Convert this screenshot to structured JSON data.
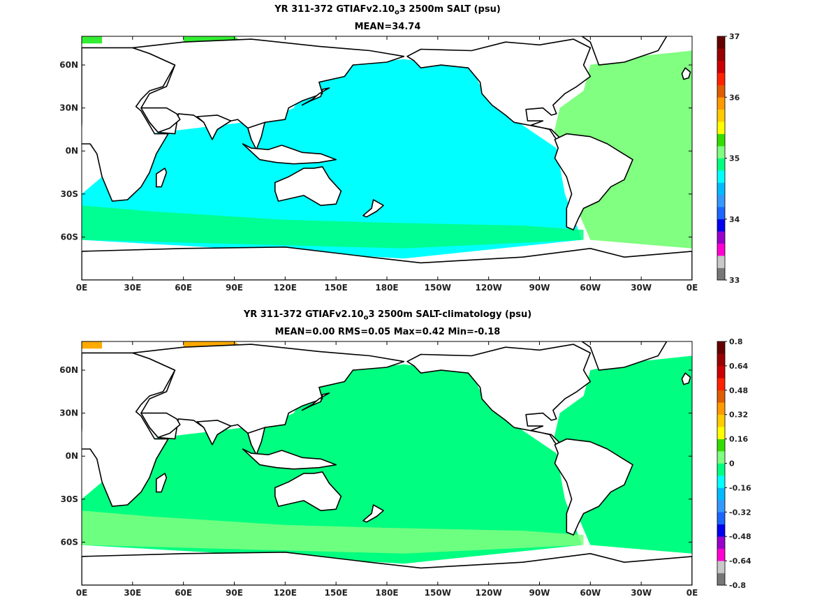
{
  "panels": [
    {
      "title_a": "YR 311-372 GTIAFv2.10",
      "title_sub": "o",
      "title_b": "3 2500m SALT (psu)",
      "subtitle": "MEAN=34.74",
      "ocean_color": "#00ffff",
      "atlantic_color": "#80ff80",
      "southern_color": "#00ff80",
      "arctic_color": "#33ee33",
      "colorbar": {
        "colors": [
          "#777777",
          "#c8c8c8",
          "#ff00d0",
          "#9900cc",
          "#0000ee",
          "#1a66ff",
          "#3399ff",
          "#00bbff",
          "#00ffff",
          "#00ff80",
          "#80ff80",
          "#33dd00",
          "#ffff00",
          "#ffcc00",
          "#ff9900",
          "#e05c00",
          "#ff2200",
          "#cc0000",
          "#990000",
          "#660000"
        ],
        "labels": [
          "37",
          "36",
          "35",
          "34",
          "33"
        ]
      }
    },
    {
      "title_a": "YR 311-372 GTIAFv2.10",
      "title_sub": "o",
      "title_b": "3 2500m SALT-climatology (psu)",
      "subtitle": "MEAN=0.00   RMS=0.05   Max=0.42   Min=-0.18",
      "ocean_color": "#00ff80",
      "atlantic_color": "#00ff80",
      "southern_color": "#80ff80",
      "arctic_color": "#ffaa00",
      "colorbar": {
        "colors": [
          "#777777",
          "#c8c8c8",
          "#ff00d0",
          "#9900cc",
          "#0000ee",
          "#1a66ff",
          "#3399ff",
          "#00bbff",
          "#00ffff",
          "#00ff80",
          "#80ff80",
          "#33dd00",
          "#ffff00",
          "#ffcc00",
          "#ff9900",
          "#e05c00",
          "#ff2200",
          "#cc0000",
          "#990000",
          "#660000"
        ],
        "labels": [
          "0.8",
          "0.64",
          "0.48",
          "0.32",
          "0.16",
          "0",
          "-0.16",
          "-0.32",
          "-0.48",
          "-0.64",
          "-0.8"
        ]
      }
    }
  ],
  "axes": {
    "x_ticks": [
      "0E",
      "30E",
      "60E",
      "90E",
      "120E",
      "150E",
      "180E",
      "150W",
      "120W",
      "90W",
      "60W",
      "30W",
      "0E"
    ],
    "y_ticks": [
      "60N",
      "30N",
      "0N",
      "30S",
      "60S"
    ]
  }
}
